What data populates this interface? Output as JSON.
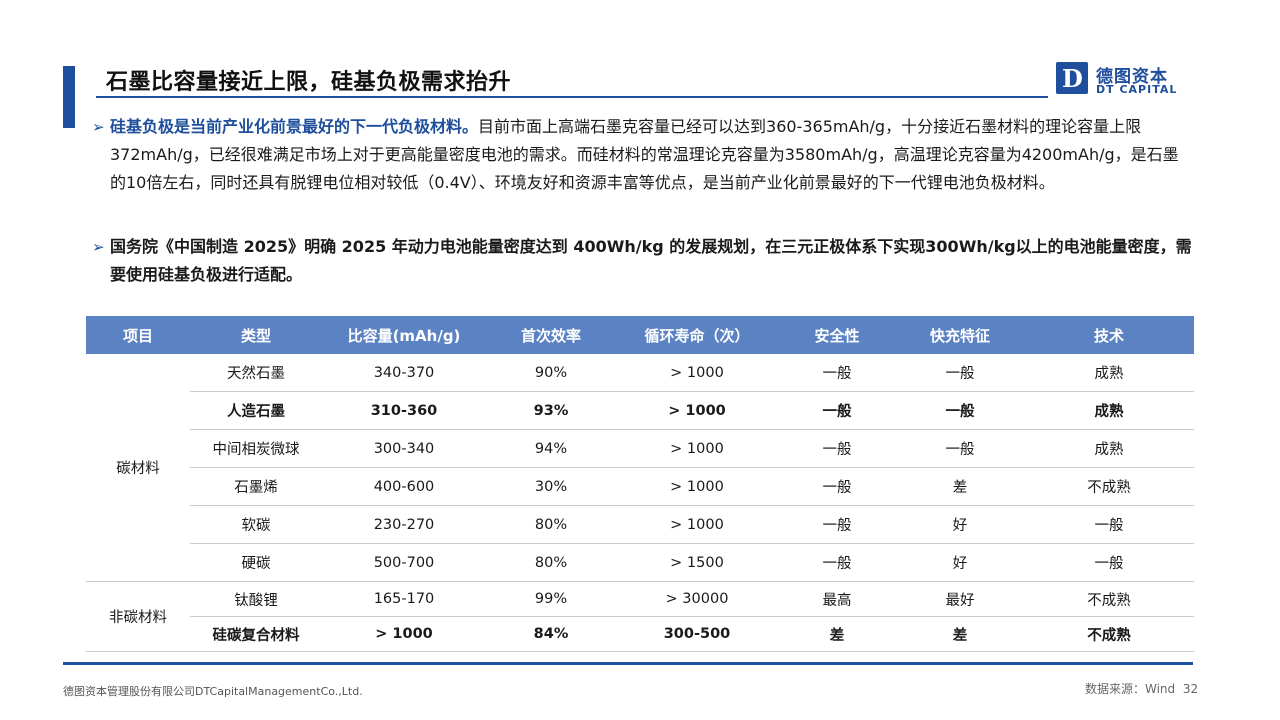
{
  "header": {
    "title": "石墨比容量接近上限，硅基负极需求抬升",
    "logo_cn": "德图资本",
    "logo_en": "DT CAPITAL",
    "logo_letter": "D"
  },
  "bullets": [
    {
      "highlight": "硅基负极是当前产业化前景最好的下一代负极材料。",
      "text": "目前市面上高端石墨克容量已经可以达到360-365mAh/g，十分接近石墨材料的理论容量上限372mAh/g，已经很难满足市场上对于更高能量密度电池的需求。而硅材料的常温理论克容量为3580mAh/g，高温理论克容量为4200mAh/g，是石墨的10倍左右，同时还具有脱锂电位相对较低（0.4V）、环境友好和资源丰富等优点，是当前产业化前景最好的下一代锂电池负极材料。"
    },
    {
      "highlight": "",
      "text": "国务院《中国制造 2025》明确 2025 年动力电池能量密度达到 400Wh/kg 的发展规划，在三元正极体系下实现300Wh/kg以上的电池能量密度，需要使用硅基负极进行适配。"
    }
  ],
  "table": {
    "headers": [
      "项目",
      "类型",
      "比容量(mAh/g)",
      "首次效率",
      "循环寿命（次）",
      "安全性",
      "快充特征",
      "技术"
    ],
    "groups": [
      {
        "name": "碳材料",
        "rows": [
          [
            "天然石墨",
            "340-370",
            "90%",
            "> 1000",
            "一般",
            "一般",
            "成熟"
          ],
          [
            "人造石墨",
            "310-360",
            "93%",
            "> 1000",
            "一般",
            "一般",
            "成熟"
          ],
          [
            "中间相炭微球",
            "300-340",
            "94%",
            "> 1000",
            "一般",
            "一般",
            "成熟"
          ],
          [
            "石墨烯",
            "400-600",
            "30%",
            "> 1000",
            "一般",
            "差",
            "不成熟"
          ],
          [
            "软碳",
            "230-270",
            "80%",
            "> 1000",
            "一般",
            "好",
            "一般"
          ],
          [
            "硬碳",
            "500-700",
            "80%",
            "> 1500",
            "一般",
            "好",
            "一般"
          ]
        ]
      },
      {
        "name": "非碳材料",
        "rows": [
          [
            "钛酸锂",
            "165-170",
            "99%",
            "> 30000",
            "最高",
            "最好",
            "不成熟"
          ],
          [
            "硅碳复合材料",
            "> 1000",
            "84%",
            "300-500",
            "差",
            "差",
            "不成熟"
          ]
        ]
      }
    ]
  },
  "footer": {
    "company": "德图资本管理股份有限公司DTCapitalManagementCo.,Ltd.",
    "source": "数据来源：Wind",
    "page": "32"
  }
}
